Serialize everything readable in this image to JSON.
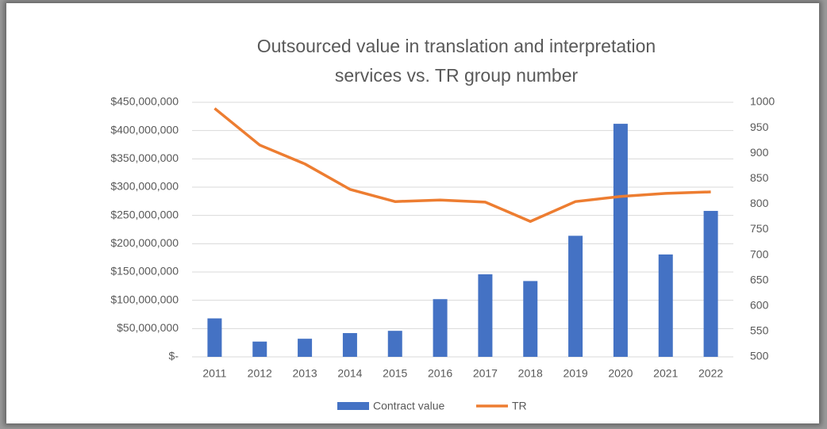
{
  "chart_data": {
    "type": "bar-line",
    "title": [
      "Outsourced value in translation and interpretation",
      "services vs. TR group number"
    ],
    "categories": [
      "2011",
      "2012",
      "2013",
      "2014",
      "2015",
      "2016",
      "2017",
      "2018",
      "2019",
      "2020",
      "2021",
      "2022"
    ],
    "series": [
      {
        "name": "Contract value",
        "type": "bar",
        "axis": "y",
        "color": "#4472c4",
        "values": [
          68000000,
          27000000,
          32000000,
          42000000,
          46000000,
          102000000,
          146000000,
          134000000,
          214000000,
          412000000,
          181000000,
          258000000
        ]
      },
      {
        "name": "TR",
        "type": "line",
        "axis": "y2",
        "color": "#ed7d31",
        "values": [
          988,
          916,
          879,
          829,
          805,
          808,
          804,
          766,
          805,
          815,
          821,
          824
        ]
      }
    ],
    "ylim": [
      0,
      450000000
    ],
    "yticks": [
      {
        "value": 0,
        "label": "$-"
      },
      {
        "value": 50000000,
        "label": "$50,000,000"
      },
      {
        "value": 100000000,
        "label": "$100,000,000"
      },
      {
        "value": 150000000,
        "label": "$150,000,000"
      },
      {
        "value": 200000000,
        "label": "$200,000,000"
      },
      {
        "value": 250000000,
        "label": "$250,000,000"
      },
      {
        "value": 300000000,
        "label": "$300,000,000"
      },
      {
        "value": 350000000,
        "label": "$350,000,000"
      },
      {
        "value": 400000000,
        "label": "$400,000,000"
      },
      {
        "value": 450000000,
        "label": "$450,000,000"
      }
    ],
    "y2lim": [
      500,
      1000
    ],
    "y2ticks": [
      500,
      550,
      600,
      650,
      700,
      750,
      800,
      850,
      900,
      950,
      1000
    ],
    "grid": true,
    "legend": "bottom"
  }
}
